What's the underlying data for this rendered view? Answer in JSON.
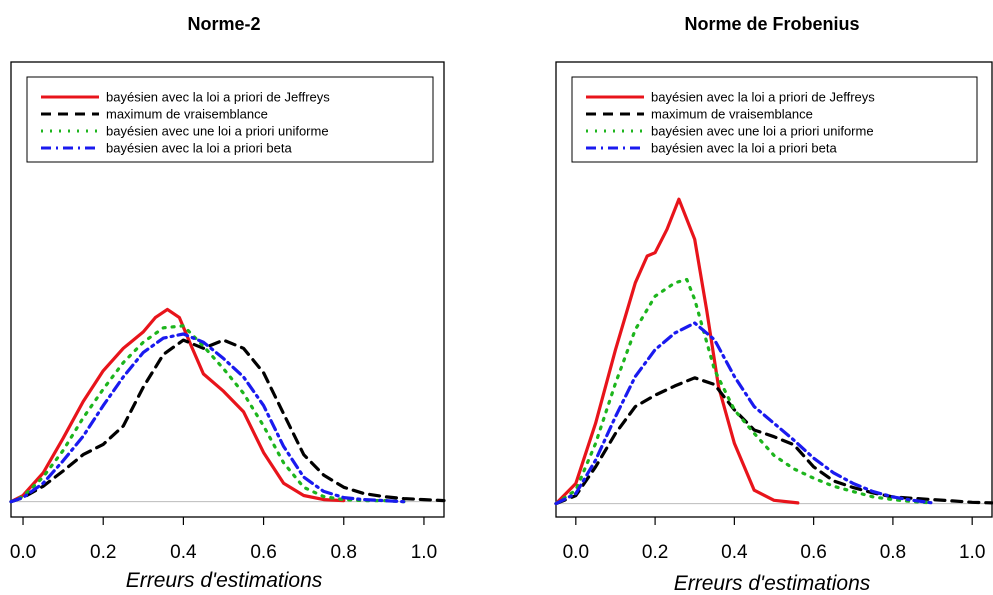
{
  "chart_data": [
    {
      "type": "line",
      "title": "Norme-2",
      "xlabel": "Erreurs d'estimations",
      "ylabel": "",
      "xlim": [
        -0.03,
        1.05
      ],
      "ylim": [
        -0.15,
        4.3
      ],
      "xticks": [
        0.0,
        0.2,
        0.4,
        0.6,
        0.8,
        1.0
      ],
      "xtick_labels": [
        "0.0",
        "0.2",
        "0.4",
        "0.6",
        "0.8",
        "1.0"
      ],
      "grid": false,
      "legend_position": "top",
      "series": [
        {
          "name": " bayésien avec la loi a priori de  Jeffreys",
          "color": "#e8141b",
          "dash": "solid",
          "x": [
            -0.03,
            0.0,
            0.05,
            0.1,
            0.15,
            0.2,
            0.25,
            0.3,
            0.33,
            0.36,
            0.39,
            0.42,
            0.45,
            0.5,
            0.55,
            0.6,
            0.65,
            0.7,
            0.75,
            0.8
          ],
          "y": [
            0.0,
            0.06,
            0.28,
            0.62,
            0.98,
            1.28,
            1.5,
            1.66,
            1.8,
            1.88,
            1.8,
            1.52,
            1.25,
            1.08,
            0.88,
            0.48,
            0.18,
            0.06,
            0.02,
            0.01
          ]
        },
        {
          "name": "maximum de vraisemblance",
          "color": "#000000",
          "dash": "dash",
          "x": [
            -0.03,
            0.0,
            0.05,
            0.1,
            0.15,
            0.2,
            0.25,
            0.3,
            0.35,
            0.4,
            0.45,
            0.5,
            0.55,
            0.6,
            0.65,
            0.7,
            0.75,
            0.8,
            0.85,
            0.9,
            0.95,
            1.0,
            1.05
          ],
          "y": [
            0.0,
            0.04,
            0.15,
            0.3,
            0.46,
            0.56,
            0.74,
            1.12,
            1.44,
            1.58,
            1.5,
            1.58,
            1.5,
            1.26,
            0.86,
            0.46,
            0.26,
            0.14,
            0.08,
            0.05,
            0.03,
            0.02,
            0.01
          ]
        },
        {
          "name": "bayésien avec une loi a priori uniforme",
          "color": "#1db51d",
          "dash": "dot",
          "x": [
            -0.03,
            0.0,
            0.05,
            0.1,
            0.15,
            0.2,
            0.25,
            0.3,
            0.35,
            0.4,
            0.45,
            0.5,
            0.55,
            0.6,
            0.65,
            0.7,
            0.75,
            0.8,
            0.85,
            0.9,
            0.95
          ],
          "y": [
            0.0,
            0.05,
            0.24,
            0.5,
            0.82,
            1.1,
            1.36,
            1.56,
            1.7,
            1.72,
            1.52,
            1.3,
            1.06,
            0.74,
            0.38,
            0.14,
            0.05,
            0.02,
            0.01,
            0.01,
            0.0
          ]
        },
        {
          "name": "bayésien avec la loi a priori beta",
          "color": "#1a1aef",
          "dash": "dashdot",
          "x": [
            -0.03,
            0.0,
            0.05,
            0.1,
            0.15,
            0.2,
            0.25,
            0.3,
            0.35,
            0.4,
            0.45,
            0.5,
            0.55,
            0.6,
            0.65,
            0.7,
            0.75,
            0.8,
            0.85,
            0.9,
            0.95
          ],
          "y": [
            0.0,
            0.04,
            0.18,
            0.4,
            0.64,
            0.94,
            1.22,
            1.46,
            1.6,
            1.64,
            1.56,
            1.4,
            1.22,
            0.94,
            0.54,
            0.24,
            0.1,
            0.04,
            0.02,
            0.01,
            0.0
          ]
        }
      ]
    },
    {
      "type": "line",
      "title": "Norme de Frobenius",
      "xlabel": "Erreurs d'estimations",
      "ylabel": "",
      "xlim": [
        -0.05,
        1.05
      ],
      "ylim": [
        -0.2,
        6.6
      ],
      "xticks": [
        0.0,
        0.2,
        0.4,
        0.6,
        0.8,
        1.0
      ],
      "xtick_labels": [
        "0.0",
        "0.2",
        "0.4",
        "0.6",
        "0.8",
        "1.0"
      ],
      "grid": false,
      "legend_position": "top",
      "series": [
        {
          "name": "bayésien avec la loi a priori de Jeffreys",
          "color": "#e8141b",
          "dash": "solid",
          "x": [
            -0.05,
            0.0,
            0.05,
            0.1,
            0.15,
            0.18,
            0.2,
            0.23,
            0.26,
            0.3,
            0.33,
            0.36,
            0.4,
            0.45,
            0.5,
            0.56
          ],
          "y": [
            0.0,
            0.3,
            1.2,
            2.3,
            3.3,
            3.7,
            3.75,
            4.1,
            4.55,
            3.95,
            2.9,
            1.75,
            0.9,
            0.2,
            0.05,
            0.01
          ]
        },
        {
          "name": "maximum de vraisemblance",
          "color": "#000000",
          "dash": "dash",
          "x": [
            -0.05,
            0.0,
            0.05,
            0.1,
            0.15,
            0.2,
            0.25,
            0.3,
            0.35,
            0.4,
            0.45,
            0.5,
            0.55,
            0.6,
            0.65,
            0.7,
            0.75,
            0.8,
            0.85,
            0.9,
            0.95,
            1.0,
            1.05
          ],
          "y": [
            0.0,
            0.12,
            0.55,
            1.05,
            1.45,
            1.62,
            1.76,
            1.88,
            1.78,
            1.4,
            1.1,
            1.0,
            0.88,
            0.55,
            0.34,
            0.24,
            0.16,
            0.1,
            0.08,
            0.06,
            0.04,
            0.02,
            0.01
          ]
        },
        {
          "name": "bayésien avec une  loi a priori uniforme",
          "color": "#1db51d",
          "dash": "dot",
          "x": [
            -0.05,
            0.0,
            0.05,
            0.1,
            0.15,
            0.2,
            0.25,
            0.28,
            0.3,
            0.35,
            0.4,
            0.45,
            0.5,
            0.55,
            0.6,
            0.65,
            0.7,
            0.75,
            0.8,
            0.85,
            0.9
          ],
          "y": [
            0.0,
            0.2,
            0.9,
            1.8,
            2.6,
            3.1,
            3.3,
            3.35,
            3.05,
            2.0,
            1.4,
            1.05,
            0.72,
            0.52,
            0.38,
            0.26,
            0.18,
            0.1,
            0.06,
            0.03,
            0.01
          ]
        },
        {
          "name": "bayésien avec la loi a priori beta",
          "color": "#1a1aef",
          "dash": "dashdot",
          "x": [
            -0.05,
            0.0,
            0.05,
            0.1,
            0.15,
            0.2,
            0.25,
            0.3,
            0.35,
            0.4,
            0.45,
            0.5,
            0.55,
            0.6,
            0.65,
            0.7,
            0.75,
            0.8,
            0.85,
            0.9
          ],
          "y": [
            0.0,
            0.15,
            0.65,
            1.3,
            1.9,
            2.3,
            2.55,
            2.7,
            2.45,
            1.9,
            1.45,
            1.2,
            0.95,
            0.68,
            0.46,
            0.3,
            0.18,
            0.1,
            0.05,
            0.01
          ]
        }
      ]
    }
  ]
}
